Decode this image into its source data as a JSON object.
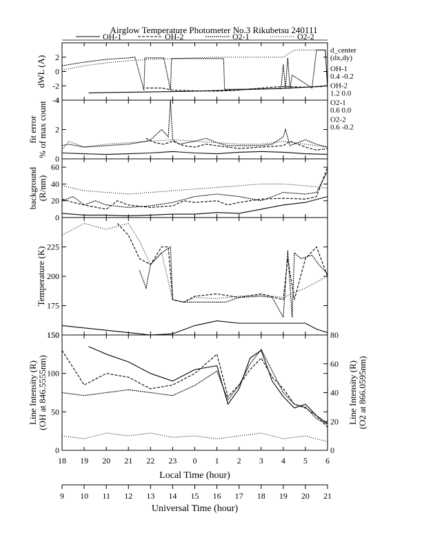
{
  "chart_data": {
    "type": "line",
    "title": "Airglow Temperature Photometer No.3  Rikubetsu   240111",
    "legend": [
      {
        "name": "OH-1",
        "dash": ""
      },
      {
        "name": "OH-2",
        "dash": "4,2"
      },
      {
        "name": "O2-1",
        "dash": "2,1"
      },
      {
        "name": "O2-2",
        "dash": "1,2"
      }
    ],
    "annotation": {
      "header": [
        "d_center",
        "(dx,dy)"
      ],
      "rows": [
        {
          "name": "OH-1",
          "value": "0.4   -0.2"
        },
        {
          "name": "OH-2",
          "value": "1.2   0.0"
        },
        {
          "name": "O2-1",
          "value": "0.6   0.0"
        },
        {
          "name": "O2-2",
          "value": "0.6   -0.2"
        }
      ]
    },
    "x_local": {
      "label": "Local Time (hour)",
      "ticks": [
        "18",
        "19",
        "20",
        "21",
        "22",
        "23",
        "0",
        "1",
        "2",
        "3",
        "4",
        "5",
        "6"
      ]
    },
    "x_ut": {
      "label": "Universal Time (hour)",
      "ticks": [
        "9",
        "10",
        "11",
        "12",
        "13",
        "14",
        "15",
        "16",
        "17",
        "18",
        "19",
        "20",
        "21"
      ],
      "range": [
        9,
        21
      ]
    },
    "panels": [
      {
        "id": "dwl",
        "ylabel": "dWL (A)",
        "ylim": [
          -4,
          4
        ],
        "yticks": [
          "-4",
          "-2",
          "0",
          "2"
        ],
        "series": [
          {
            "name": "OH-1",
            "x": [
              10.2,
              11,
              12,
              13,
              14,
              15,
              16,
              17,
              18,
              19,
              20,
              21
            ],
            "y": [
              -3.0,
              -2.95,
              -2.9,
              -2.85,
              -2.8,
              -2.75,
              -2.65,
              -2.55,
              -2.45,
              -2.35,
              -2.2,
              -2.0
            ]
          },
          {
            "name": "OH-2",
            "x": [
              12.8,
              13.5,
              14,
              15,
              16,
              17,
              18,
              19,
              20,
              20.8
            ],
            "y": [
              -2.3,
              -2.3,
              -2.6,
              -2.7,
              -2.75,
              -2.6,
              -2.3,
              -2.1,
              -2.2,
              -2.1
            ]
          },
          {
            "name": "O2-1",
            "x": [
              9,
              10,
              11,
              12,
              12.3,
              12.7,
              12.75,
              13.6,
              13.9,
              13.95,
              16.3,
              16.35,
              18.9,
              19.0,
              19.1,
              19.2,
              19.3,
              19.4,
              20.3,
              20.5,
              20.9,
              21.0
            ],
            "y": [
              0.8,
              1.3,
              1.7,
              1.9,
              2.0,
              -2.6,
              1.9,
              1.9,
              -2.6,
              1.8,
              1.8,
              -2.5,
              -2.4,
              1.0,
              -2.4,
              1.9,
              -2.4,
              -0.5,
              -2.3,
              3.0,
              3.0,
              -2.3
            ]
          },
          {
            "name": "O2-2",
            "x": [
              9,
              10,
              11,
              12,
              13,
              14,
              15,
              16,
              17,
              18,
              19,
              19.5,
              20.5,
              20.9,
              21.0
            ],
            "y": [
              0.2,
              0.8,
              1.2,
              1.5,
              1.7,
              1.8,
              1.9,
              2.0,
              2.0,
              2.0,
              2.0,
              3.0,
              3.0,
              3.0,
              -2.2
            ]
          }
        ]
      },
      {
        "id": "fit",
        "ylabel": "fit error",
        "ylabel2": "% of max count",
        "ylim": [
          0,
          4
        ],
        "yticks": [
          "0",
          "2",
          "4"
        ],
        "series": [
          {
            "name": "OH-1",
            "x": [
              9,
              10,
              11,
              12,
              13,
              14,
              15,
              16,
              17,
              18,
              19,
              20,
              21
            ],
            "y": [
              0.4,
              0.35,
              0.3,
              0.35,
              0.4,
              0.5,
              0.4,
              0.35,
              0.45,
              0.5,
              0.45,
              0.35,
              0.3
            ]
          },
          {
            "name": "OH-2",
            "x": [
              12.8,
              13.2,
              13.6,
              14,
              14.5,
              15,
              15.5,
              16,
              17,
              18,
              19,
              19.3,
              20,
              20.5,
              21
            ],
            "y": [
              1.4,
              1.1,
              1.0,
              1.2,
              0.9,
              0.8,
              1.0,
              0.9,
              0.7,
              0.8,
              0.9,
              1.2,
              0.8,
              0.6,
              0.7
            ]
          },
          {
            "name": "O2-1",
            "x": [
              9,
              9.3,
              10,
              11,
              12,
              12.8,
              13,
              13.5,
              13.8,
              13.9,
              14,
              14.3,
              15,
              15.5,
              16,
              16.5,
              17,
              18,
              18.5,
              19,
              19.1,
              19.3,
              20,
              20.5,
              21
            ],
            "y": [
              0.9,
              1.0,
              0.8,
              0.9,
              1.0,
              1.2,
              1.3,
              2.0,
              1.5,
              4.0,
              1.3,
              1.0,
              1.2,
              1.4,
              1.1,
              0.9,
              0.9,
              0.9,
              1.0,
              1.5,
              2.0,
              0.9,
              1.3,
              1.0,
              0.8
            ]
          },
          {
            "name": "O2-2",
            "x": [
              9,
              9.3,
              10,
              11,
              12,
              13,
              14,
              15,
              16,
              17,
              18,
              19,
              20,
              21
            ],
            "y": [
              0.6,
              1.2,
              0.8,
              1.0,
              1.1,
              1.2,
              1.3,
              1.2,
              1.1,
              1.0,
              1.0,
              1.2,
              1.0,
              0.8
            ]
          }
        ]
      },
      {
        "id": "bg",
        "ylabel": "background",
        "ylabel2": "(R/nm)",
        "ylim": [
          0,
          70
        ],
        "yticks": [
          "0",
          "20",
          "40",
          "60"
        ],
        "series": [
          {
            "name": "OH-1",
            "x": [
              9,
              10,
              11,
              12,
              13,
              14,
              15,
              16,
              17,
              18,
              19,
              20,
              21
            ],
            "y": [
              5,
              3,
              3,
              2,
              3,
              4,
              4,
              6,
              5,
              10,
              15,
              18,
              25
            ]
          },
          {
            "name": "OH-2",
            "x": [
              9,
              9.5,
              10,
              11,
              11.5,
              12,
              13,
              14,
              14.5,
              15,
              16,
              16.5,
              17,
              18,
              19,
              20,
              20.5,
              21
            ],
            "y": [
              22,
              18,
              15,
              10,
              20,
              15,
              12,
              14,
              20,
              18,
              20,
              15,
              18,
              22,
              23,
              22,
              25,
              60
            ]
          },
          {
            "name": "O2-1",
            "x": [
              9,
              9.5,
              10,
              10.5,
              11,
              12,
              13,
              14,
              15,
              16,
              17,
              18,
              19,
              20,
              20.5,
              21
            ],
            "y": [
              20,
              25,
              15,
              20,
              15,
              12,
              14,
              18,
              25,
              28,
              25,
              20,
              30,
              28,
              30,
              55
            ]
          },
          {
            "name": "O2-2",
            "x": [
              9,
              10,
              11,
              12,
              13,
              14,
              15,
              16,
              17,
              18,
              19,
              20,
              21
            ],
            "y": [
              38,
              32,
              30,
              28,
              30,
              32,
              34,
              36,
              38,
              40,
              40,
              38,
              35
            ]
          }
        ]
      },
      {
        "id": "temp",
        "ylabel": "Temperature (K)",
        "ylim": [
          150,
          250
        ],
        "yticks": [
          "150",
          "175",
          "200",
          "225"
        ],
        "series": [
          {
            "name": "OH-1",
            "x": [
              9,
              10,
              11,
              12,
              13,
              14,
              15,
              16,
              17,
              18,
              19,
              20,
              20.5,
              21
            ],
            "y": [
              158,
              156,
              154,
              152,
              150,
              151,
              158,
              162,
              160,
              160,
              160,
              160,
              155,
              152
            ]
          },
          {
            "name": "OH-2",
            "x": [
              11.5,
              12,
              12.5,
              13,
              13.5,
              13.8,
              14,
              14.5,
              15,
              16,
              17,
              18,
              19,
              19.2,
              19.5,
              20,
              20.5,
              21
            ],
            "y": [
              245,
              235,
              215,
              210,
              225,
              225,
              180,
              178,
              183,
              185,
              182,
              185,
              180,
              215,
              180,
              215,
              225,
              200
            ]
          },
          {
            "name": "O2-1",
            "x": [
              12.5,
              12.8,
              13,
              13.5,
              13.9,
              14,
              14.5,
              16.3,
              16.4,
              17,
              18,
              18.5,
              19,
              19.2,
              19.4,
              19.5,
              19.8,
              20.3,
              20.6,
              21
            ],
            "y": [
              205,
              190,
              210,
              220,
              225,
              180,
              178,
              178,
              178,
              182,
              183,
              182,
              165,
              222,
              165,
              220,
              215,
              218,
              210,
              202
            ]
          },
          {
            "name": "O2-2",
            "x": [
              9,
              10,
              11,
              12,
              12.5,
              13,
              13.5,
              14,
              14.5,
              15,
              16,
              17,
              18,
              19,
              20,
              21
            ],
            "y": [
              235,
              245,
              240,
              245,
              230,
              210,
              220,
              180,
              178,
              182,
              181,
              183,
              184,
              182,
              190,
              200
            ]
          }
        ]
      },
      {
        "id": "intensity",
        "ylabel": "Line Intensity (R)",
        "ylabel2": "(OH at 846.5555nm)",
        "ylabel_right": "Line Intensity (R)",
        "ylabel_right2": "(O2 at 866.0595nm)",
        "ylim": [
          0,
          150
        ],
        "yticks": [
          "0",
          "50",
          "100",
          "150"
        ],
        "ylim_right": [
          0,
          80
        ],
        "yticks_right": [
          "0",
          "20",
          "40",
          "60",
          "80"
        ],
        "series": [
          {
            "name": "OH-1",
            "axis": "left",
            "x": [
              10.2,
              11,
              12,
              13,
              14,
              15,
              16,
              16.5,
              17,
              17.5,
              18,
              18.5,
              19,
              19.5,
              20,
              20.5,
              21
            ],
            "y": [
              135,
              125,
              115,
              100,
              90,
              105,
              110,
              60,
              80,
              120,
              130,
              90,
              70,
              55,
              60,
              45,
              35
            ]
          },
          {
            "name": "OH-2",
            "axis": "left",
            "x": [
              9,
              10,
              11,
              12,
              13,
              14,
              15,
              16,
              16.5,
              17,
              17.5,
              18,
              18.5,
              19,
              19.5,
              20,
              20.5,
              21
            ],
            "y": [
              130,
              85,
              100,
              95,
              80,
              85,
              100,
              125,
              70,
              85,
              105,
              120,
              95,
              80,
              60,
              55,
              45,
              30
            ]
          },
          {
            "name": "O2-1",
            "axis": "right",
            "x": [
              9,
              10,
              11,
              12,
              13,
              14,
              15,
              16,
              16.5,
              17,
              17.5,
              18,
              18.5,
              19,
              19.5,
              20,
              20.5,
              21
            ],
            "y": [
              40,
              38,
              40,
              42,
              40,
              38,
              45,
              55,
              35,
              45,
              60,
              70,
              55,
              40,
              32,
              30,
              22,
              18
            ]
          },
          {
            "name": "O2-2",
            "axis": "right",
            "x": [
              9,
              10,
              11,
              12,
              13,
              14,
              15,
              16,
              17,
              18,
              19,
              20,
              21
            ],
            "y": [
              10,
              8,
              12,
              10,
              12,
              9,
              10,
              8,
              10,
              12,
              8,
              10,
              6
            ]
          }
        ]
      }
    ]
  }
}
